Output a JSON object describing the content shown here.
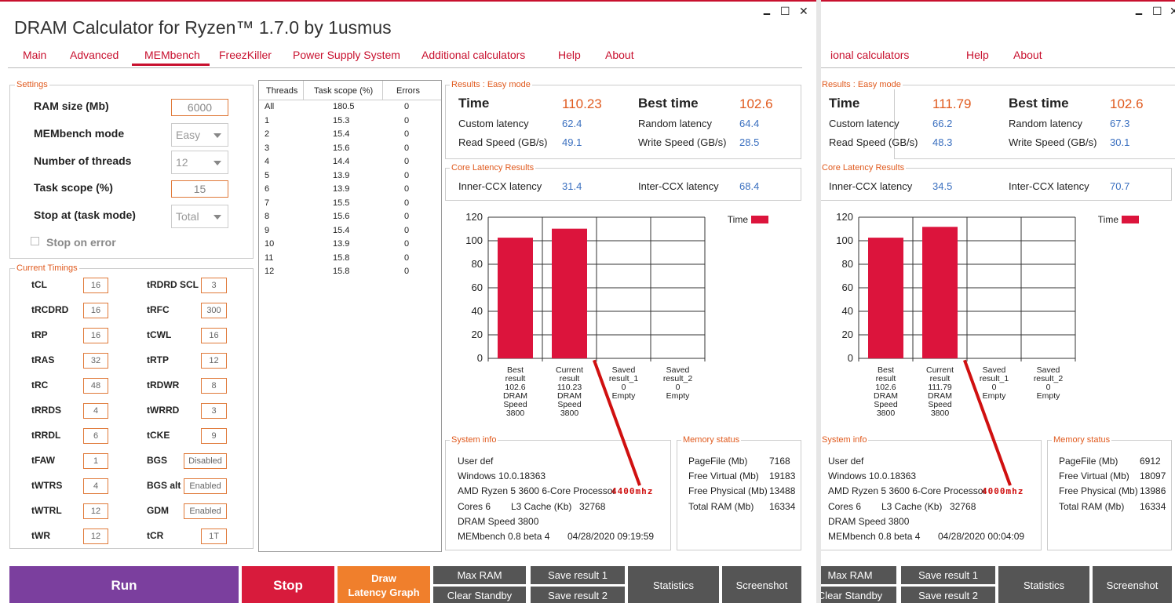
{
  "app_title": "DRAM Calculator for Ryzen™ 1.7.0 by 1usmus",
  "window_controls": {
    "minimize": "🗕",
    "maximize": "☐",
    "close": "✕"
  },
  "tabs": [
    "Main",
    "Advanced",
    "MEMbench",
    "FreezKiller",
    "Power Supply System",
    "Additional calculators",
    "Help",
    "About"
  ],
  "tab2_partial": "ional calculators",
  "settings": {
    "legend": "Settings",
    "ram_size_label": "RAM size (Mb)",
    "ram_size_value": "6000",
    "mode_label": "MEMbench mode",
    "mode_value": "Easy",
    "threads_label": "Number of threads",
    "threads_value": "12",
    "scope_label": "Task scope (%)",
    "scope_value": "15",
    "stop_label": "Stop at (task mode)",
    "stop_value": "Total",
    "stop_error_label": "Stop on error"
  },
  "timings": {
    "legend": "Current Timings",
    "left": [
      [
        "tCL",
        "16"
      ],
      [
        "tRCDRD",
        "16"
      ],
      [
        "tRP",
        "16"
      ],
      [
        "tRAS",
        "32"
      ],
      [
        "tRC",
        "48"
      ],
      [
        "tRRDS",
        "4"
      ],
      [
        "tRRDL",
        "6"
      ],
      [
        "tFAW",
        "1"
      ],
      [
        "tWTRS",
        "4"
      ],
      [
        "tWTRL",
        "12"
      ],
      [
        "tWR",
        "12"
      ]
    ],
    "right": [
      [
        "tRDRD SCL",
        "3"
      ],
      [
        "tRFC",
        "300"
      ],
      [
        "tCWL",
        "16"
      ],
      [
        "tRTP",
        "12"
      ],
      [
        "tRDWR",
        "8"
      ],
      [
        "tWRRD",
        "3"
      ],
      [
        "tCKE",
        "9"
      ],
      [
        "BGS",
        "Disabled"
      ],
      [
        "BGS alt",
        "Enabled"
      ],
      [
        "GDM",
        "Enabled"
      ],
      [
        "tCR",
        "1T"
      ]
    ]
  },
  "thread_table": {
    "headers": [
      "Threads",
      "Task scope (%)",
      "Errors"
    ],
    "rows": [
      [
        "All",
        "180.5",
        "0"
      ],
      [
        "1",
        "15.3",
        "0"
      ],
      [
        "2",
        "15.4",
        "0"
      ],
      [
        "3",
        "15.6",
        "0"
      ],
      [
        "4",
        "14.4",
        "0"
      ],
      [
        "5",
        "13.9",
        "0"
      ],
      [
        "6",
        "13.9",
        "0"
      ],
      [
        "7",
        "15.5",
        "0"
      ],
      [
        "8",
        "15.6",
        "0"
      ],
      [
        "9",
        "15.4",
        "0"
      ],
      [
        "10",
        "13.9",
        "0"
      ],
      [
        "11",
        "15.8",
        "0"
      ],
      [
        "12",
        "15.8",
        "0"
      ]
    ]
  },
  "labels": {
    "results_legend": "Results : Easy mode",
    "time": "Time",
    "best_time": "Best time",
    "custom_latency": "Custom latency",
    "random_latency": "Random latency",
    "read_speed": "Read Speed (GB/s)",
    "write_speed": "Write Speed (GB/s)",
    "core_legend": "Core Latency Results",
    "inner_ccx": "Inner-CCX latency",
    "inter_ccx": "Inter-CCX latency",
    "sysinfo_legend": "System info",
    "memstatus_legend": "Memory status",
    "pagefile": "PageFile (Mb)",
    "free_virtual": "Free Virtual (Mb)",
    "free_physical": "Free Physical (Mb)",
    "total_ram": "Total RAM (Mb)",
    "cores": "Cores 6",
    "l3": "L3 Cache (Kb)"
  },
  "results1": {
    "time": "110.23",
    "best_time": "102.6",
    "custom_latency": "62.4",
    "random_latency": "64.4",
    "read_speed": "49.1",
    "write_speed": "28.5",
    "inner_ccx": "31.4",
    "inter_ccx": "68.4"
  },
  "results2": {
    "time": "111.79",
    "best_time": "102.6",
    "custom_latency": "66.2",
    "random_latency": "67.3",
    "read_speed": "48.3",
    "write_speed": "30.1",
    "inner_ccx": "34.5",
    "inter_ccx": "70.7"
  },
  "sysinfo1": {
    "user": "User def",
    "os": "Windows 10.0.18363",
    "cpu": "AMD Ryzen 5 3600 6-Core Processor",
    "annotation": "4400mhz",
    "l3": "32768",
    "dram": "DRAM Speed 3800",
    "bench": "MEMbench 0.8 beta 4",
    "date": "04/28/2020 09:19:59"
  },
  "sysinfo2": {
    "user": "User def",
    "os": "Windows 10.0.18363",
    "cpu": "AMD Ryzen 5 3600 6-Core Processor",
    "annotation": "4000mhz",
    "l3": "32768",
    "dram": "DRAM Speed 3800",
    "bench": "MEMbench 0.8 beta 4",
    "date": "04/28/2020 00:04:09"
  },
  "mem1": {
    "pagefile": "7168",
    "free_virtual": "19183",
    "free_physical": "13488",
    "total_ram": "16334"
  },
  "mem2": {
    "pagefile": "6912",
    "free_virtual": "18097",
    "free_physical": "13986",
    "total_ram": "16334"
  },
  "chart_data": [
    {
      "type": "bar",
      "categories": [
        "Best result 102.6 DRAM Speed 3800",
        "Current result 110.23 DRAM Speed 3800",
        "Saved result_1 0 Empty",
        "Saved result_2 0 Empty"
      ],
      "category_lines": [
        [
          "Best",
          "result",
          "102.6",
          "DRAM",
          "Speed",
          "3800"
        ],
        [
          "Current",
          "result",
          "110.23",
          "DRAM",
          "Speed",
          "3800"
        ],
        [
          "Saved",
          "result_1",
          "0",
          "Empty"
        ],
        [
          "Saved",
          "result_2",
          "0",
          "Empty"
        ]
      ],
      "series": [
        {
          "name": "Time",
          "values": [
            102.6,
            110.23,
            0,
            0
          ]
        }
      ],
      "ylim": [
        0,
        120
      ],
      "yticks": [
        0,
        20,
        40,
        60,
        80,
        100,
        120
      ],
      "color": "#dc143c",
      "legend": "top-right"
    },
    {
      "type": "bar",
      "categories": [
        "Best result 102.6 DRAM Speed 3800",
        "Current result 111.79 DRAM Speed 3800",
        "Saved result_1 0 Empty",
        "Saved result_2 0 Empty"
      ],
      "category_lines": [
        [
          "Best",
          "result",
          "102.6",
          "DRAM",
          "Speed",
          "3800"
        ],
        [
          "Current",
          "result",
          "111.79",
          "DRAM",
          "Speed",
          "3800"
        ],
        [
          "Saved",
          "result_1",
          "0",
          "Empty"
        ],
        [
          "Saved",
          "result_2",
          "0",
          "Empty"
        ]
      ],
      "series": [
        {
          "name": "Time",
          "values": [
            102.6,
            111.79,
            0,
            0
          ]
        }
      ],
      "ylim": [
        0,
        120
      ],
      "yticks": [
        0,
        20,
        40,
        60,
        80,
        100,
        120
      ],
      "color": "#dc143c",
      "legend": "top-right"
    }
  ],
  "buttons": {
    "run": "Run",
    "stop": "Stop",
    "draw_line1": "Draw",
    "draw_line2": "Latency Graph",
    "max_ram": "Max RAM",
    "clear_standby": "Clear Standby",
    "save1": "Save result 1",
    "save2": "Save result 2",
    "statistics": "Statistics",
    "screenshot": "Screenshot"
  },
  "colors": {
    "accent": "#c8102e",
    "orange": "#e05a1e",
    "run": "#7b3f9e",
    "stop": "#d81b3c",
    "draw": "#f07f2c",
    "gray_button": "#555555",
    "value_blue": "#3a6fbf"
  }
}
